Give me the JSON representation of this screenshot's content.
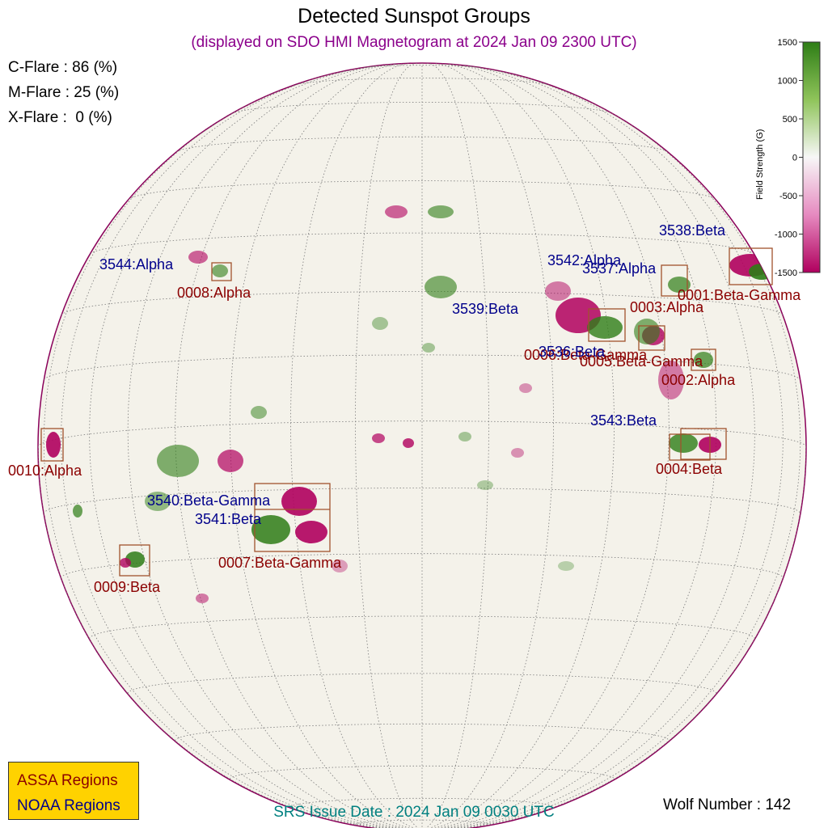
{
  "header": {
    "title": "Detected Sunspot Groups",
    "subtitle": "(displayed on SDO HMI Magnetogram at 2024 Jan 09 2300 UTC)"
  },
  "flare_probabilities": [
    {
      "label": "C-Flare : 86 (%)",
      "value": 86
    },
    {
      "label": "M-Flare : 25 (%)",
      "value": 25
    },
    {
      "label": "X-Flare :  0 (%)",
      "value": 0
    }
  ],
  "colorbar": {
    "title": "Field Strength (G)",
    "ticks": [
      "1500",
      "1000",
      "500",
      "0",
      "-500",
      "-1000",
      "-1500"
    ],
    "positive_color": "#2e7d16",
    "negative_color": "#b0005e"
  },
  "colors": {
    "assa": "#8b0000",
    "noaa": "#00008b",
    "box": "#a0522d",
    "disk_bg": "#f4f2ea",
    "grid": "#7a7a7a"
  },
  "assa_regions": [
    {
      "label": "0001:Beta-Gamma"
    },
    {
      "label": "0002:Alpha"
    },
    {
      "label": "0003:Alpha"
    },
    {
      "label": "0004:Beta"
    },
    {
      "label": "0005:Beta-Gamma"
    },
    {
      "label": "0006:Beta-Gamma"
    },
    {
      "label": "0007:Beta-Gamma"
    },
    {
      "label": "0008:Alpha"
    },
    {
      "label": "0009:Beta"
    },
    {
      "label": "0010:Alpha"
    }
  ],
  "noaa_regions": [
    {
      "label": "3536:Beta"
    },
    {
      "label": "3537:Alpha"
    },
    {
      "label": "3538:Beta"
    },
    {
      "label": "3539:Beta"
    },
    {
      "label": "3540:Beta-Gamma"
    },
    {
      "label": "3541:Beta"
    },
    {
      "label": "3542:Alpha"
    },
    {
      "label": "3543:Beta"
    },
    {
      "label": "3544:Alpha"
    }
  ],
  "legend": {
    "assa": "ASSA Regions",
    "noaa": "NOAA Regions"
  },
  "footer": {
    "srs_issue": "SRS Issue Date : 2024 Jan 09 0030 UTC",
    "wolf_number": "Wolf Number : 142"
  }
}
